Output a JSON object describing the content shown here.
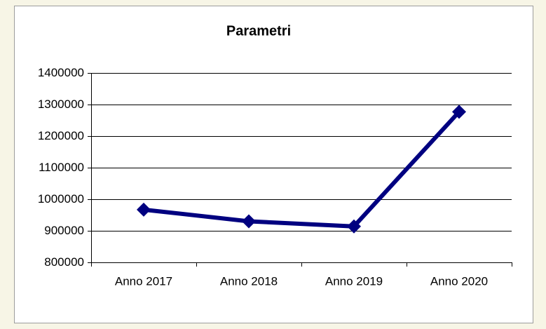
{
  "chart_data": {
    "type": "line",
    "title": "Parametri",
    "categories": [
      "Anno 2017",
      "Anno 2018",
      "Anno 2019",
      "Anno 2020"
    ],
    "values": [
      967000,
      930000,
      914000,
      1277000
    ],
    "color": "#000080",
    "ylim": [
      800000,
      1400000
    ],
    "yticks": [
      800000,
      900000,
      1000000,
      1100000,
      1200000,
      1300000,
      1400000
    ],
    "grid": true
  }
}
